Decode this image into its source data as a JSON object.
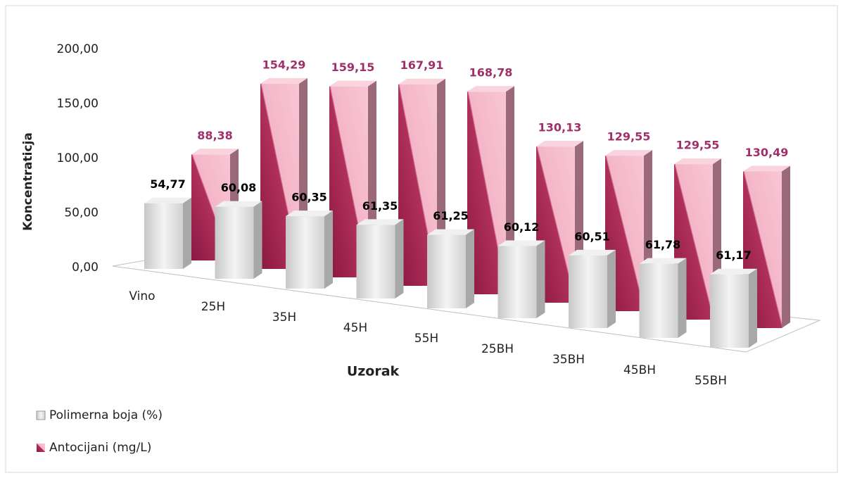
{
  "chart_data": {
    "type": "bar3d",
    "x_label": "Uzorak",
    "y_label": "Koncentraticja",
    "categories": [
      "Vino",
      "25H",
      "35H",
      "45H",
      "55H",
      "25BH",
      "35BH",
      "45BH",
      "55BH"
    ],
    "ylim": [
      0,
      200
    ],
    "yticks": [
      {
        "value": 0,
        "label": "0,00"
      },
      {
        "value": 50,
        "label": "50,00"
      },
      {
        "value": 100,
        "label": "100,00"
      },
      {
        "value": 150,
        "label": "150,00"
      },
      {
        "value": 200,
        "label": "200,00"
      }
    ],
    "series": [
      {
        "name": "Polimerna boja (%)",
        "color": "#e0e0e0",
        "label_color": "#000000",
        "values": [
          54.77,
          60.08,
          60.35,
          61.35,
          61.25,
          60.12,
          60.51,
          61.78,
          61.17
        ],
        "value_labels": [
          "54,77",
          "60,08",
          "60,35",
          "61,35",
          "61,25",
          "60,12",
          "60,51",
          "61,78",
          "61,17"
        ]
      },
      {
        "name": "Antocijani (mg/L)",
        "color": "#a3204e",
        "label_color": "#a0306a",
        "values": [
          88.38,
          154.29,
          159.15,
          167.91,
          168.78,
          130.13,
          129.55,
          129.55,
          130.49
        ],
        "value_labels": [
          "88,38",
          "154,29",
          "159,15",
          "167,91",
          "168,78",
          "130,13",
          "129,55",
          "129,55",
          "130,49"
        ]
      }
    ]
  }
}
